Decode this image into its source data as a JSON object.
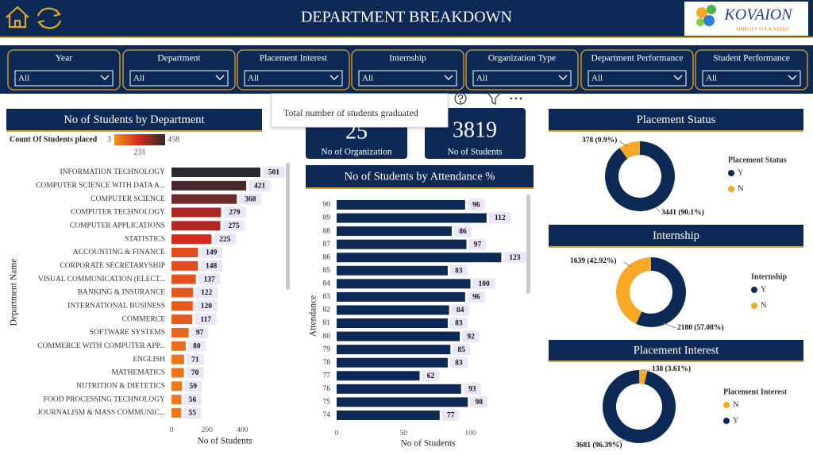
{
  "header": {
    "title": "DEPARTMENT BREAKDOWN",
    "logo": "KOVAION",
    "logo_tagline": "SIMPLIFY YOUR NEEDS"
  },
  "filters": [
    {
      "label": "Year",
      "value": "All"
    },
    {
      "label": "Department",
      "value": "All"
    },
    {
      "label": "Placement Interest",
      "value": "All"
    },
    {
      "label": "Internship",
      "value": "All"
    },
    {
      "label": "Organization Type",
      "value": "All"
    },
    {
      "label": "Department Performance",
      "value": "All"
    },
    {
      "label": "Student Performance",
      "value": "All"
    }
  ],
  "cards": [
    {
      "value": 25,
      "label": "No of Organization"
    },
    {
      "value": 3819,
      "label": "No of Students"
    }
  ],
  "tooltip": "Total number of students graduated",
  "chart_data": [
    {
      "type": "bar",
      "orientation": "horizontal",
      "title": "No of Students by Department",
      "x_label": "No of Students",
      "y_label": "Department Name",
      "legend_title": "Count Of Students placed",
      "color_scale": {
        "min": 3,
        "mid": 231,
        "max": 458,
        "colors": [
          "#f7931e",
          "#d2261e",
          "#2b2a2e"
        ]
      },
      "categories": [
        "INFORMATION TECHNOLOGY",
        "COMPUTER SCIENCE WITH DATA A...",
        "COMPUTER SCIENCE",
        "COMPUTER TECHNOLOGY",
        "COMPUTER APPLICATIONS",
        "STATISTICS",
        "ACCOUNTING & FINANCE",
        "CORPORATE SECRETARYSHIP",
        "VISUAL COMMUNICATION (ELECT...",
        "BANKING & INSURANCE",
        "INTERNATIONAL BUSINESS",
        "COMMERCE",
        "SOFTWARE SYSTEMS",
        "COMMERCE WITH COMPUTER APP...",
        "ENGLISH",
        "MATHEMATICS",
        "NUTRITION & DIETETICS",
        "FOOD PROCESSING TECHNOLOGY",
        "JOURNALISM & MASS COMMUNIC..."
      ],
      "values": [
        501,
        421,
        368,
        279,
        275,
        225,
        149,
        148,
        137,
        122,
        120,
        117,
        97,
        80,
        71,
        70,
        59,
        56,
        55
      ],
      "xlim": [
        0,
        510
      ],
      "xticks": [
        0,
        200,
        400
      ]
    },
    {
      "type": "bar",
      "orientation": "horizontal",
      "title": "No of Students by Attendance %",
      "x_label": "No of Students",
      "y_label": "Attendance",
      "color": "#0c2a55",
      "categories": [
        90,
        89,
        88,
        87,
        86,
        85,
        84,
        83,
        82,
        81,
        80,
        79,
        78,
        77,
        76,
        75,
        74
      ],
      "values": [
        96,
        112,
        86,
        97,
        123,
        83,
        100,
        96,
        84,
        83,
        92,
        85,
        83,
        62,
        93,
        98,
        77
      ],
      "xlim": [
        0,
        140
      ],
      "xticks": [
        0,
        50,
        100
      ]
    },
    {
      "type": "pie",
      "donut": true,
      "title": "Placement Status",
      "legend_title": "Placement Status",
      "categories": [
        "Y",
        "N"
      ],
      "values": [
        3441,
        378
      ],
      "value_labels": [
        "3441 (90.1%)",
        "378 (9.9%)"
      ],
      "colors": [
        "#0c2a55",
        "#f9a825"
      ]
    },
    {
      "type": "pie",
      "donut": true,
      "title": "Internship",
      "legend_title": "Internship",
      "categories": [
        "Y",
        "N"
      ],
      "values": [
        2180,
        1639
      ],
      "value_labels": [
        "2180 (57.08%)",
        "1639 (42.92%)"
      ],
      "colors": [
        "#0c2a55",
        "#f9a825"
      ]
    },
    {
      "type": "pie",
      "donut": true,
      "title": "Placement Interest",
      "legend_title": "Placement Interest",
      "categories": [
        "N",
        "Y"
      ],
      "values": [
        138,
        3681
      ],
      "value_labels": [
        "138 (3.61%)",
        "3681 (96.39%)"
      ],
      "colors": [
        "#f9a825",
        "#0c2a55"
      ]
    }
  ]
}
